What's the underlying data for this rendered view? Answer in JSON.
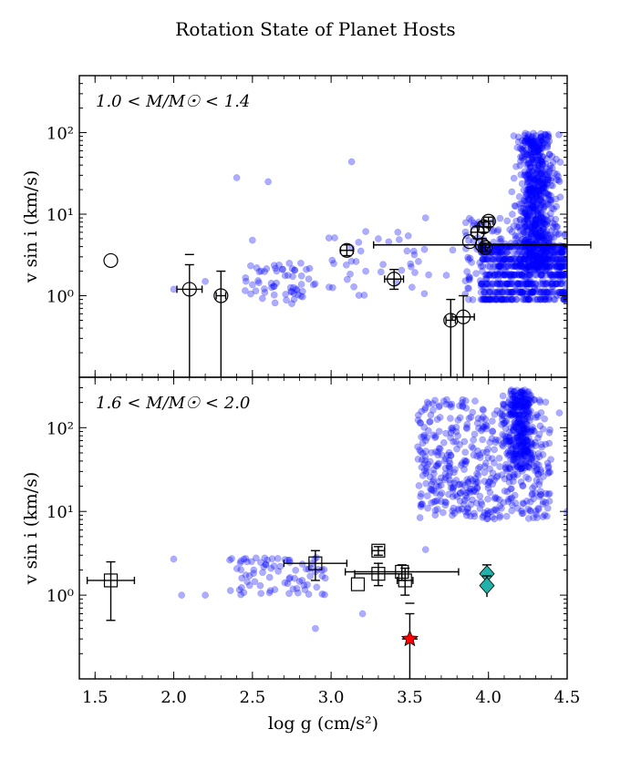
{
  "chart_data": {
    "title": "Rotation State of Planet Hosts",
    "xlabel": "log g (cm/s²)",
    "xlim": [
      1.4,
      4.5
    ],
    "x_ticks": [
      1.5,
      2.0,
      2.5,
      3.0,
      3.5,
      4.0,
      4.5
    ],
    "x_tick_labels": [
      "1.5",
      "2.0",
      "2.5",
      "3.0",
      "3.5",
      "4.0",
      "4.5"
    ],
    "panels": [
      {
        "type": "scatter",
        "label": "1.0 < M/M☉ < 1.4",
        "ylabel": "v sin i (km/s)",
        "yscale": "log",
        "ylim": [
          0.1,
          500
        ],
        "y_ticks": [
          1,
          10,
          100
        ],
        "y_tick_labels": [
          "10⁰",
          "10¹",
          "10²"
        ],
        "field_color": "#0000ff",
        "host_points": [
          {
            "x": 1.6,
            "y": 2.7,
            "xerr": 0,
            "ylow": 2.7,
            "yhigh": 2.7
          },
          {
            "x": 2.1,
            "y": 1.2,
            "xerr": 0.08,
            "ylow": 0.05,
            "yhigh": 2.4,
            "cap": 3.2
          },
          {
            "x": 2.3,
            "y": 1.0,
            "xerr": 0.03,
            "ylow": 0.05,
            "yhigh": 2.0
          },
          {
            "x": 3.1,
            "y": 3.6,
            "xerr": 0.04,
            "ylow": 3.1,
            "yhigh": 4.2
          },
          {
            "x": 3.4,
            "y": 1.6,
            "xerr": 0.06,
            "ylow": 1.2,
            "yhigh": 2.1
          },
          {
            "x": 3.76,
            "y": 0.5,
            "xerr": 0.03,
            "ylow": 0.05,
            "yhigh": 0.9
          },
          {
            "x": 3.84,
            "y": 0.55,
            "xerr": 0.07,
            "ylow": 0.05,
            "yhigh": 1.0
          },
          {
            "x": 3.88,
            "y": 4.6,
            "xerr": 0.0,
            "ylow": 4.6,
            "yhigh": 4.6
          },
          {
            "x": 3.93,
            "y": 6.0,
            "xerr": 0.04,
            "ylow": 5.0,
            "yhigh": 7.0
          },
          {
            "x": 3.96,
            "y": 4.2,
            "xerr": 0.69,
            "ylow": 3.5,
            "yhigh": 5.0
          },
          {
            "x": 3.97,
            "y": 7.0,
            "xerr": 0.03,
            "ylow": 6.0,
            "yhigh": 8.0
          },
          {
            "x": 4.0,
            "y": 8.2,
            "xerr": 0.03,
            "ylow": 7.0,
            "yhigh": 9.2
          },
          {
            "x": 3.98,
            "y": 3.9,
            "xerr": 0.03,
            "ylow": 3.5,
            "yhigh": 4.4
          }
        ]
      },
      {
        "type": "scatter",
        "label": "1.6 < M/M☉ < 2.0",
        "ylabel": "v sin i (km/s)",
        "yscale": "log",
        "ylim": [
          0.1,
          400
        ],
        "y_ticks": [
          1,
          10,
          100
        ],
        "y_tick_labels": [
          "10⁰",
          "10¹",
          "10²"
        ],
        "field_color": "#0000ff",
        "host_points": [
          {
            "x": 1.6,
            "y": 1.5,
            "xerr": 0.15,
            "ylow": 0.5,
            "yhigh": 2.5
          },
          {
            "x": 2.9,
            "y": 2.4,
            "xerr": 0.2,
            "ylow": 1.5,
            "yhigh": 3.4
          },
          {
            "x": 3.17,
            "y": 1.35,
            "xerr": 0,
            "ylow": 1.35,
            "yhigh": 1.35
          },
          {
            "x": 3.3,
            "y": 3.4,
            "xerr": 0.04,
            "ylow": 3.0,
            "yhigh": 3.8
          },
          {
            "x": 3.3,
            "y": 1.8,
            "xerr": 0.15,
            "ylow": 1.3,
            "yhigh": 2.4
          },
          {
            "x": 3.47,
            "y": 1.5,
            "xerr": 0.05,
            "ylow": 1.0,
            "yhigh": 2.1
          },
          {
            "x": 3.45,
            "y": 1.9,
            "xerr": 0.36,
            "ylow": 1.5,
            "yhigh": 2.3
          }
        ],
        "special_points": [
          {
            "marker": "star",
            "color": "#ff0000",
            "x": 3.5,
            "y": 0.3,
            "xerr": 0.05,
            "ylow": 0.05,
            "yhigh": 0.6,
            "cap": 0.8
          },
          {
            "marker": "diamond",
            "color": "#20b2aa",
            "x": 3.99,
            "y": 1.8,
            "xerr": 0.02,
            "ylow": 1.3,
            "yhigh": 2.3
          },
          {
            "marker": "diamond",
            "color": "#20b2aa",
            "x": 3.99,
            "y": 1.3,
            "xerr": 0.02,
            "ylow": 0.95,
            "yhigh": 1.7
          }
        ]
      }
    ]
  }
}
